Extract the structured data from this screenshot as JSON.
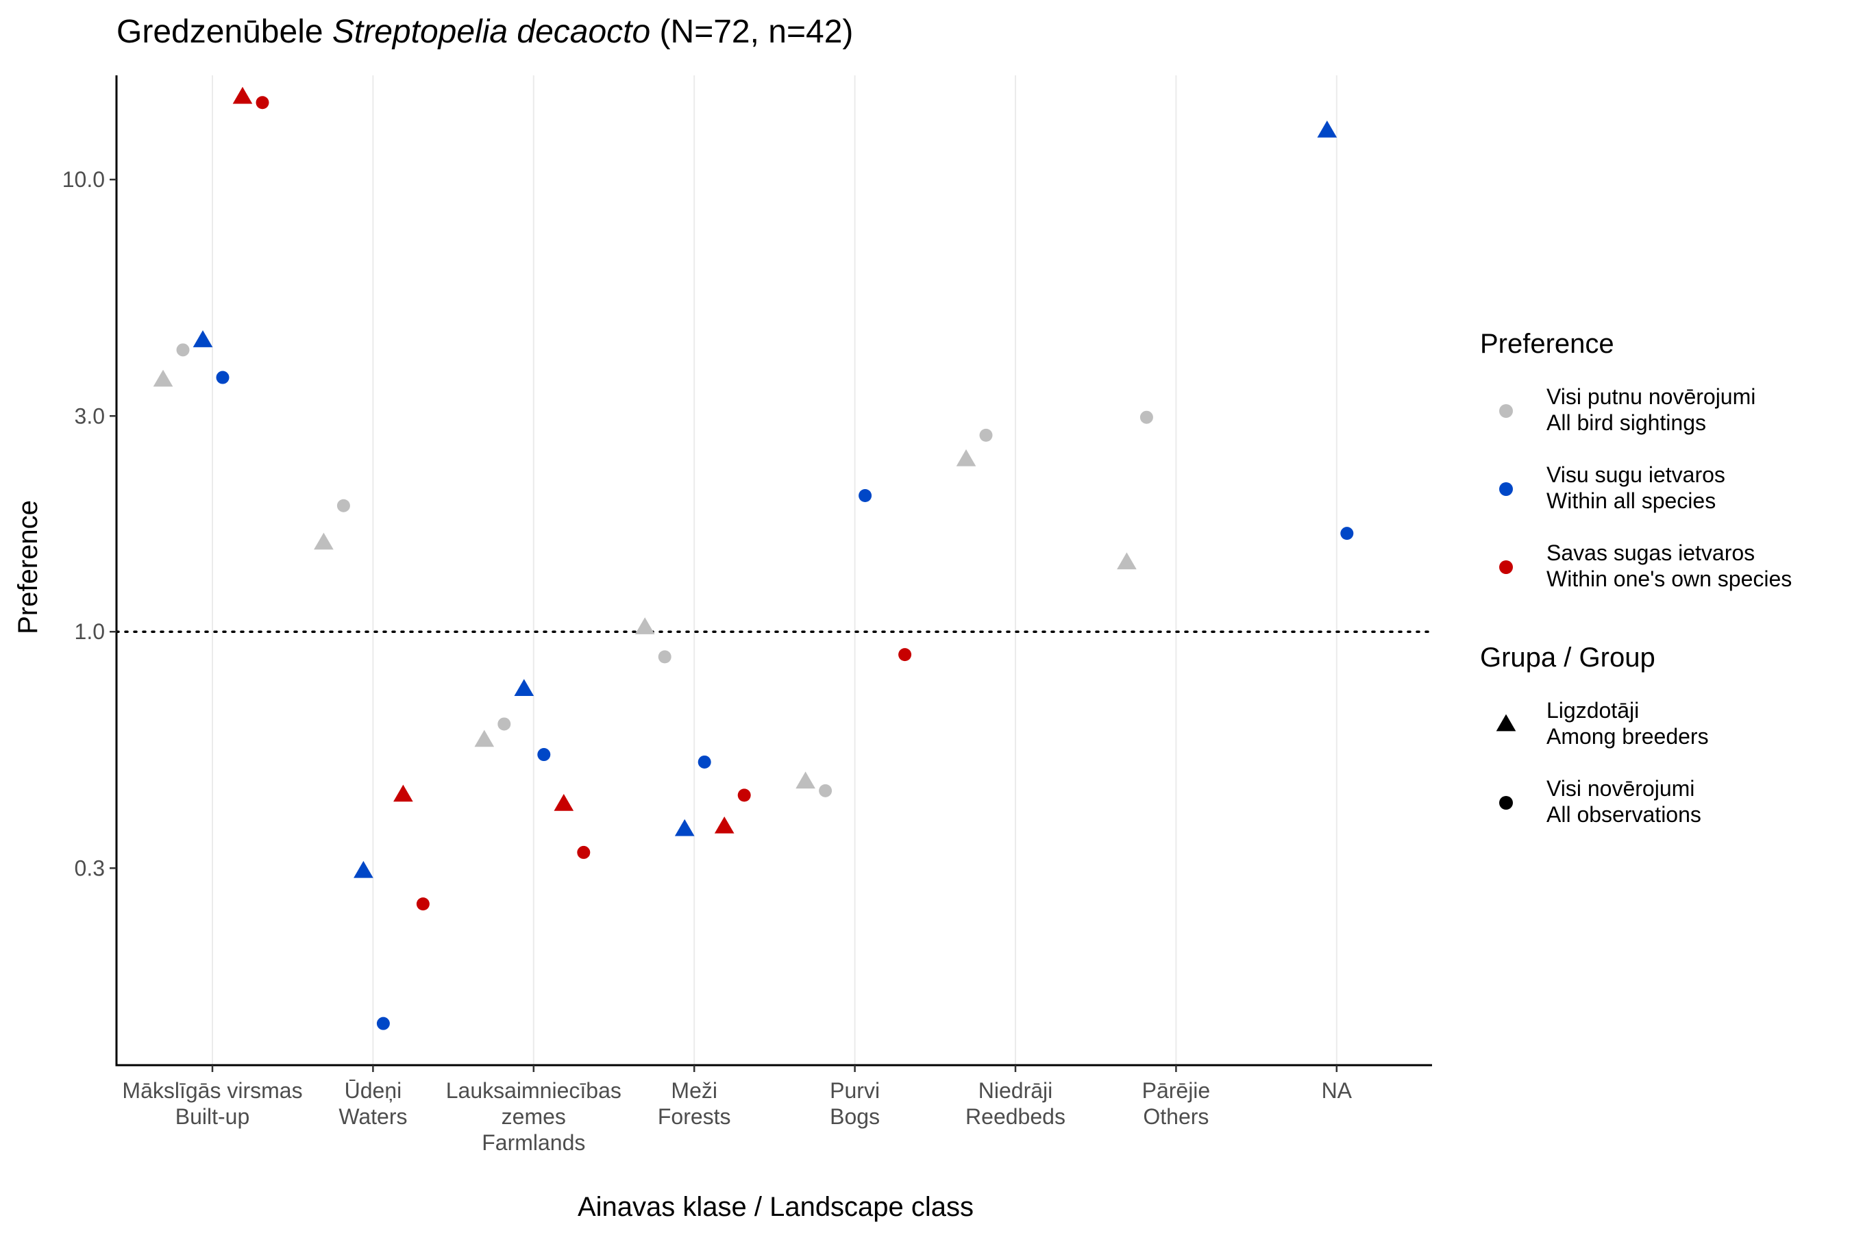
{
  "chart_data": {
    "type": "scatter",
    "title": {
      "prefix": "Gredzenūbele ",
      "species": "Streptopelia decaocto",
      "suffix": " (N=72, n=42)"
    },
    "xlabel": "Ainavas klase / Landscape class",
    "ylabel": "Preference",
    "y_scale": "log10",
    "ylim": [
      0.11,
      17.0
    ],
    "yticks": [
      {
        "value": 0.3,
        "label": "0.3"
      },
      {
        "value": 1.0,
        "label": "1.0"
      },
      {
        "value": 3.0,
        "label": "3.0"
      },
      {
        "value": 10.0,
        "label": "10.0"
      }
    ],
    "reference_line": {
      "value": 1.0,
      "style": "dotted"
    },
    "grid": {
      "vertical_major": true,
      "horizontal": false
    },
    "categories": [
      {
        "lines": [
          "Mākslīgās virsmas",
          "Built-up"
        ]
      },
      {
        "lines": [
          "Ūdeņi",
          "Waters"
        ]
      },
      {
        "lines": [
          "Lauksaimniecības",
          "zemes",
          "Farmlands"
        ]
      },
      {
        "lines": [
          "Meži",
          "Forests"
        ]
      },
      {
        "lines": [
          "Purvi",
          "Bogs"
        ]
      },
      {
        "lines": [
          "Niedrāji",
          "Reedbeds"
        ]
      },
      {
        "lines": [
          "Pārējie",
          "Others"
        ]
      },
      {
        "lines": [
          "NA"
        ]
      }
    ],
    "colors": {
      "all_bird_sightings": "#bebebe",
      "within_all_species": "#0047c7",
      "within_own_species": "#c70000"
    },
    "points": [
      {
        "category": 0,
        "preference": "all_bird_sightings",
        "group": "breeders",
        "value": 3.6
      },
      {
        "category": 0,
        "preference": "all_bird_sightings",
        "group": "all",
        "value": 4.2
      },
      {
        "category": 0,
        "preference": "within_all_species",
        "group": "breeders",
        "value": 4.4
      },
      {
        "category": 0,
        "preference": "within_all_species",
        "group": "all",
        "value": 3.65
      },
      {
        "category": 0,
        "preference": "within_own_species",
        "group": "breeders",
        "value": 15.2
      },
      {
        "category": 0,
        "preference": "within_own_species",
        "group": "all",
        "value": 14.8
      },
      {
        "category": 1,
        "preference": "all_bird_sightings",
        "group": "breeders",
        "value": 1.57
      },
      {
        "category": 1,
        "preference": "all_bird_sightings",
        "group": "all",
        "value": 1.9
      },
      {
        "category": 1,
        "preference": "within_all_species",
        "group": "breeders",
        "value": 0.295
      },
      {
        "category": 1,
        "preference": "within_all_species",
        "group": "all",
        "value": 0.136
      },
      {
        "category": 1,
        "preference": "within_own_species",
        "group": "breeders",
        "value": 0.435
      },
      {
        "category": 1,
        "preference": "within_own_species",
        "group": "all",
        "value": 0.25
      },
      {
        "category": 2,
        "preference": "all_bird_sightings",
        "group": "breeders",
        "value": 0.575
      },
      {
        "category": 2,
        "preference": "all_bird_sightings",
        "group": "all",
        "value": 0.625
      },
      {
        "category": 2,
        "preference": "within_all_species",
        "group": "breeders",
        "value": 0.745
      },
      {
        "category": 2,
        "preference": "within_all_species",
        "group": "all",
        "value": 0.535
      },
      {
        "category": 2,
        "preference": "within_own_species",
        "group": "breeders",
        "value": 0.415
      },
      {
        "category": 2,
        "preference": "within_own_species",
        "group": "all",
        "value": 0.325
      },
      {
        "category": 3,
        "preference": "all_bird_sightings",
        "group": "breeders",
        "value": 1.02
      },
      {
        "category": 3,
        "preference": "all_bird_sightings",
        "group": "all",
        "value": 0.88
      },
      {
        "category": 3,
        "preference": "within_all_species",
        "group": "breeders",
        "value": 0.365
      },
      {
        "category": 3,
        "preference": "within_all_species",
        "group": "all",
        "value": 0.515
      },
      {
        "category": 3,
        "preference": "within_own_species",
        "group": "breeders",
        "value": 0.37
      },
      {
        "category": 3,
        "preference": "within_own_species",
        "group": "all",
        "value": 0.435
      },
      {
        "category": 4,
        "preference": "all_bird_sightings",
        "group": "breeders",
        "value": 0.465
      },
      {
        "category": 4,
        "preference": "all_bird_sightings",
        "group": "all",
        "value": 0.445
      },
      {
        "category": 4,
        "preference": "within_all_species",
        "group": "all",
        "value": 2.0
      },
      {
        "category": 4,
        "preference": "within_own_species",
        "group": "all",
        "value": 0.89
      },
      {
        "category": 5,
        "preference": "all_bird_sightings",
        "group": "breeders",
        "value": 2.4
      },
      {
        "category": 5,
        "preference": "all_bird_sightings",
        "group": "all",
        "value": 2.72
      },
      {
        "category": 6,
        "preference": "all_bird_sightings",
        "group": "breeders",
        "value": 1.42
      },
      {
        "category": 6,
        "preference": "all_bird_sightings",
        "group": "all",
        "value": 2.98
      },
      {
        "category": 7,
        "preference": "within_all_species",
        "group": "breeders",
        "value": 12.8
      },
      {
        "category": 7,
        "preference": "within_all_species",
        "group": "all",
        "value": 1.65
      }
    ],
    "legend": {
      "placement": "right",
      "preference": {
        "title": "Preference",
        "items": [
          {
            "key": "all_bird_sightings",
            "lines": [
              "Visi putnu novērojumi",
              "All bird sightings"
            ]
          },
          {
            "key": "within_all_species",
            "lines": [
              "Visu sugu ietvaros",
              "Within all species"
            ]
          },
          {
            "key": "within_own_species",
            "lines": [
              "Savas sugas ietvaros",
              "Within one's own species"
            ]
          }
        ]
      },
      "group": {
        "title": "Grupa / Group",
        "items": [
          {
            "key": "breeders",
            "shape": "triangle",
            "lines": [
              "Ligzdotāji",
              "Among breeders"
            ]
          },
          {
            "key": "all",
            "shape": "circle",
            "lines": [
              "Visi novērojumi",
              "All observations"
            ]
          }
        ]
      }
    }
  }
}
